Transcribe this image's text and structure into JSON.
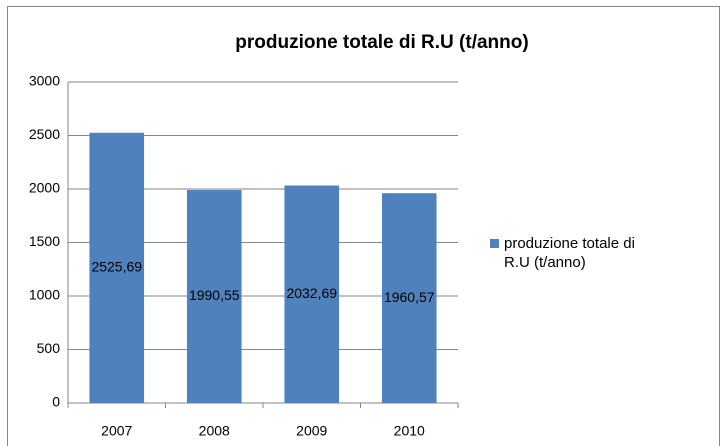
{
  "chart_data": {
    "type": "bar",
    "title": "produzione totale di R.U (t/anno)",
    "categories": [
      "2007",
      "2008",
      "2009",
      "2010"
    ],
    "series": [
      {
        "name": "produzione totale di R.U (t/anno)",
        "color": "#4f81bd",
        "values": [
          2525.69,
          1990.55,
          2032.69,
          1960.57
        ],
        "value_labels": [
          "2525,69",
          "1990,55",
          "2032,69",
          "1960,57"
        ]
      }
    ],
    "ylim": [
      0,
      3000
    ],
    "yticks": [
      0,
      500,
      1000,
      1500,
      2000,
      2500,
      3000
    ],
    "grid": true,
    "legend": "right"
  }
}
